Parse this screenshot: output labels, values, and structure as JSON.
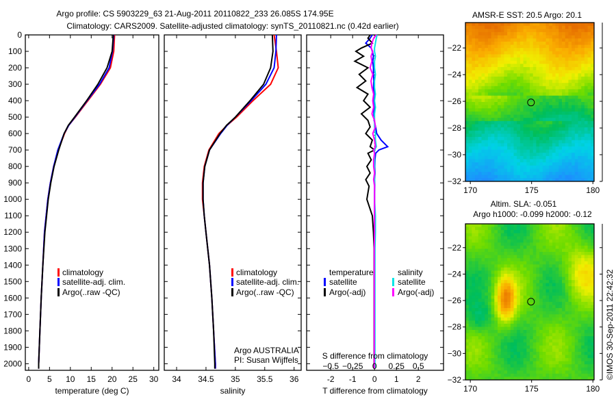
{
  "title_line1": "Argo profile: CS 5903229_63 21-Aug-2011 20110822_233 26.085S 174.95E",
  "title_line2": "Climatology: CARS2009. Satellite-adjusted climatology: synTS_20110821.nc (0.42d earlier)",
  "credit": "©IMOS 30-Sep-2011 22:42:32",
  "colors": {
    "climatology": "#ff0000",
    "satellite": "#0000ff",
    "argo": "#000000",
    "s_satellite": "#00e5e5",
    "s_argo": "#ff00ff"
  },
  "chart_data": [
    {
      "type": "line",
      "id": "temperature",
      "xlabel": "temperature (deg C)",
      "ylabel": "depth",
      "xlim": [
        -0.8,
        31.2
      ],
      "ylim": [
        0,
        2040
      ],
      "xticks": [
        0,
        5,
        10,
        15,
        20,
        25,
        30
      ],
      "yticks": [
        0,
        100,
        200,
        300,
        400,
        500,
        600,
        700,
        800,
        900,
        1000,
        1100,
        1200,
        1300,
        1400,
        1500,
        1600,
        1700,
        1800,
        1900,
        2000
      ],
      "depth": [
        0,
        100,
        200,
        300,
        400,
        500,
        550,
        600,
        700,
        800,
        900,
        1000,
        1200,
        1400,
        1600,
        1800,
        2000,
        2030
      ],
      "series": [
        {
          "name": "climatology",
          "color": "#ff0000",
          "values": [
            20.6,
            20.4,
            19.6,
            17.2,
            14.2,
            11.2,
            9.6,
            8.6,
            7.1,
            6.0,
            5.2,
            4.6,
            3.8,
            3.4,
            3.0,
            2.7,
            2.4,
            2.4
          ]
        },
        {
          "name": "satellite-adj. clim.",
          "color": "#0000ff",
          "values": [
            20.4,
            20.1,
            19.3,
            17.0,
            14.0,
            11.1,
            9.6,
            8.5,
            7.0,
            6.0,
            5.2,
            4.6,
            3.8,
            3.4,
            3.0,
            2.7,
            2.4,
            2.4
          ]
        },
        {
          "name": "Argo(..raw -QC)",
          "color": "#000000",
          "values": [
            20.3,
            20.0,
            18.8,
            16.6,
            13.9,
            11.0,
            9.5,
            8.5,
            7.2,
            6.1,
            5.3,
            4.7,
            3.9,
            3.4,
            3.0,
            2.7,
            2.4,
            2.4
          ]
        }
      ],
      "legend": [
        "climatology",
        "satellite-adj. clim.",
        "Argo(..raw -QC)"
      ]
    },
    {
      "type": "line",
      "id": "salinity",
      "xlabel": "salinity",
      "xlim": [
        33.79,
        36.12
      ],
      "ylim": [
        0,
        2040
      ],
      "xticks": [
        34,
        34.5,
        35,
        35.5,
        36
      ],
      "depth": [
        0,
        100,
        200,
        300,
        400,
        500,
        550,
        600,
        700,
        800,
        900,
        1000,
        1100,
        1200,
        1400,
        1600,
        1800,
        2000,
        2030
      ],
      "series": [
        {
          "name": "climatology",
          "color": "#ff0000",
          "values": [
            35.66,
            35.7,
            35.73,
            35.6,
            35.3,
            35.02,
            34.86,
            34.72,
            34.55,
            34.47,
            34.44,
            34.44,
            34.47,
            34.5,
            34.56,
            34.6,
            34.63,
            34.66,
            34.66
          ]
        },
        {
          "name": "satellite-adj. clim.",
          "color": "#0000ff",
          "values": [
            35.7,
            35.69,
            35.66,
            35.52,
            35.27,
            35.0,
            34.86,
            34.75,
            34.56,
            34.48,
            34.45,
            34.45,
            34.47,
            34.5,
            34.56,
            34.6,
            34.63,
            34.66,
            34.66
          ]
        },
        {
          "name": "Argo(..raw -QC)",
          "color": "#000000",
          "values": [
            35.63,
            35.64,
            35.6,
            35.48,
            35.25,
            35.0,
            34.85,
            34.74,
            34.56,
            34.48,
            34.45,
            34.45,
            34.47,
            34.5,
            34.56,
            34.6,
            34.63,
            34.65,
            34.65
          ]
        }
      ],
      "legend": [
        "climatology",
        "satellite-adj. clim.",
        "Argo(..raw -QC)"
      ],
      "annotation": [
        "Argo AUSTRALIA",
        "PI: Susan Wijffels"
      ]
    },
    {
      "type": "line",
      "id": "difference",
      "xlabel": "T difference from climatology",
      "x2label": "S difference from climatology",
      "xlim": [
        -3.1,
        3.15
      ],
      "x2lim": [
        -0.775,
        0.7875
      ],
      "ylim": [
        0,
        2040
      ],
      "xticks": [
        -2,
        -1,
        0,
        1,
        2
      ],
      "x2ticks": [
        "-0.5",
        "-0.25",
        "0",
        "0.25",
        "0.5"
      ],
      "depth": [
        0,
        20,
        50,
        80,
        100,
        130,
        160,
        200,
        240,
        280,
        320,
        360,
        400,
        440,
        480,
        520,
        560,
        600,
        640,
        680,
        700,
        720,
        760,
        800,
        840,
        880,
        920,
        960,
        1000,
        1100,
        1200,
        1300,
        1400,
        2030
      ],
      "series": [
        {
          "name": "temperature satellite",
          "color": "#0000ff",
          "values": [
            -0.1,
            -0.2,
            -0.4,
            -0.15,
            -0.1,
            -0.05,
            -0.08,
            -0.05,
            -0.05,
            -0.03,
            -0.05,
            -0.02,
            -0.05,
            -0.02,
            -0.03,
            -0.02,
            0.05,
            0.1,
            0.3,
            0.6,
            0.2,
            0.05,
            0.02,
            0.01,
            0.02,
            0,
            0.01,
            0,
            0,
            0,
            0,
            0,
            0,
            0
          ]
        },
        {
          "name": "temperature Argo(-adj)",
          "color": "#000000",
          "values": [
            -0.2,
            -0.3,
            -0.1,
            -0.6,
            -0.85,
            -0.5,
            -0.9,
            -0.3,
            -0.7,
            -0.4,
            -0.8,
            -0.3,
            -0.5,
            -0.2,
            -0.6,
            -0.3,
            -0.2,
            -0.4,
            -0.1,
            -0.2,
            0,
            -0.3,
            -0.15,
            -0.35,
            -0.2,
            -0.4,
            -0.25,
            -0.3,
            -0.35,
            -0.1,
            -0.05,
            -0.02,
            -0.02,
            -0.02
          ]
        },
        {
          "name": "salinity satellite",
          "color": "#00e5e5",
          "values": [
            0.03,
            0.02,
            0.01,
            0.0,
            0.0,
            0.01,
            0.0,
            0.0,
            0.01,
            0.0,
            0.0,
            0.01,
            0.0,
            0.01,
            0.0,
            0.0,
            0.0,
            0.01,
            0.01,
            0.02,
            0.0,
            0.0,
            0.0,
            0.0,
            0.0,
            0.0,
            0.0,
            0.0,
            0.0,
            0.01,
            0.01,
            0.005,
            0.005,
            0.005
          ]
        },
        {
          "name": "salinity Argo(-adj)",
          "color": "#ff00ff",
          "values": [
            0.02,
            -0.01,
            -0.03,
            -0.04,
            -0.02,
            -0.04,
            -0.03,
            -0.05,
            -0.02,
            -0.04,
            -0.03,
            -0.01,
            -0.02,
            -0.01,
            -0.03,
            0.0,
            0.01,
            -0.02,
            0.0,
            0.01,
            -0.01,
            0.0,
            -0.01,
            -0.01,
            0,
            -0.01,
            0,
            0,
            0,
            0,
            0,
            -0.003,
            -0.003,
            -0.003
          ]
        }
      ],
      "legend": {
        "temperature_heading": "temperature",
        "salinity_heading": "salinity",
        "t_sat": "satellite",
        "t_argo": "Argo(-adj)",
        "s_sat": "satellite",
        "s_argo": "Argo(-adj)"
      }
    },
    {
      "type": "heatmap",
      "id": "sst-map",
      "title": "AMSR-E SST: 20.5 Argo: 20.1",
      "xlim": [
        169.6,
        180.1
      ],
      "ylim": [
        -32,
        -20.1
      ],
      "xticks": [
        170,
        175,
        180
      ],
      "yticks": [
        -22,
        -24,
        -26,
        -28,
        -30,
        -32
      ],
      "marker": {
        "lon": 174.95,
        "lat": -26.085
      }
    },
    {
      "type": "heatmap",
      "id": "sla-map",
      "title_line1": "Altim. SLA: -0.051",
      "title_line2": "Argo h1000: -0.099 h2000: -0.12",
      "xlim": [
        169.6,
        180.1
      ],
      "ylim": [
        -32,
        -20.2
      ],
      "xticks": [
        170,
        175,
        180
      ],
      "yticks": [
        -22,
        -24,
        -26,
        -28,
        -30,
        -32
      ],
      "marker": {
        "lon": 174.95,
        "lat": -26.085
      }
    }
  ]
}
